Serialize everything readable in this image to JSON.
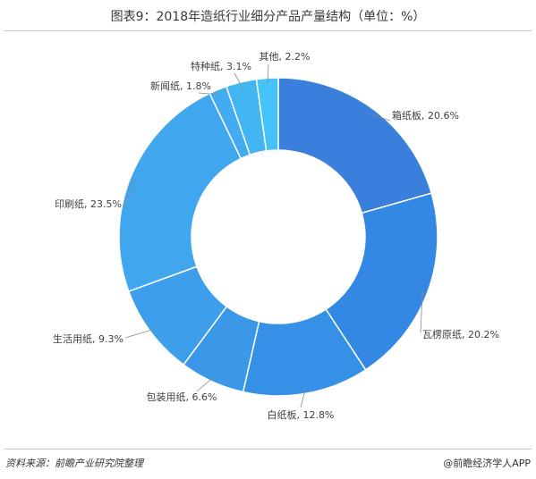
{
  "title": "图表9：2018年造纸行业细分产品产量结构（单位：%）",
  "source": "资料来源：前瞻产业研究院整理",
  "brand": "@前瞻经济学人APP",
  "chart_data": {
    "type": "pie",
    "variant": "donut",
    "title": "图表9：2018年造纸行业细分产品产量结构（单位：%）",
    "unit": "%",
    "slices": [
      {
        "label": "箱纸板",
        "value": 20.6,
        "display": "箱纸板, 20.6%",
        "color": "#3a7fdb"
      },
      {
        "label": "瓦楞原纸",
        "value": 20.2,
        "display": "瓦楞原纸, 20.2%",
        "color": "#3288e2"
      },
      {
        "label": "白纸板",
        "value": 12.8,
        "display": "白纸板, 12.8%",
        "color": "#3691e6"
      },
      {
        "label": "包装用纸",
        "value": 6.6,
        "display": "包装用纸, 6.6%",
        "color": "#3b98e9"
      },
      {
        "label": "生活用纸",
        "value": 9.3,
        "display": "生活用纸, 9.3%",
        "color": "#3d9feb"
      },
      {
        "label": "印刷纸",
        "value": 23.5,
        "display": "印刷纸, 23.5%",
        "color": "#40a6ee"
      },
      {
        "label": "新闻纸",
        "value": 1.8,
        "display": "新闻纸, 1.8%",
        "color": "#41adf0"
      },
      {
        "label": "特种纸",
        "value": 3.1,
        "display": "特种纸, 3.1%",
        "color": "#42b5f3"
      },
      {
        "label": "其他",
        "value": 2.2,
        "display": "其他, 2.2%",
        "color": "#45c3f8"
      }
    ]
  }
}
